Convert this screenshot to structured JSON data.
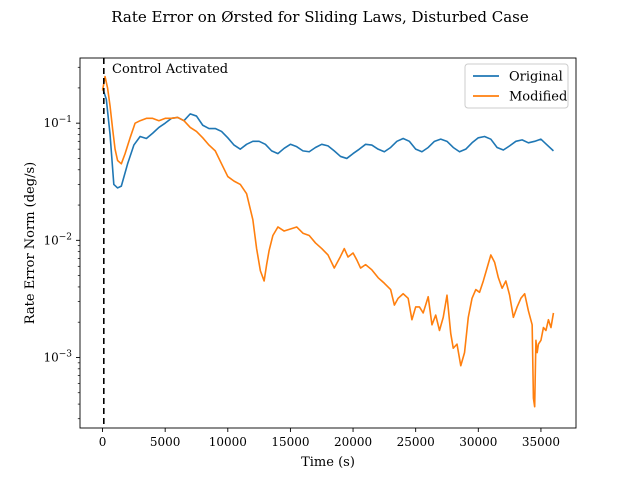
{
  "chart_data": {
    "type": "line",
    "title": "Rate Error on Ørsted for Sliding Laws, Disturbed Case",
    "xlabel": "Time (s)",
    "ylabel": "Rate Error Norm (deg/s)",
    "xlim": [
      -1800,
      37800
    ],
    "ylim": [
      0.00025,
      0.36
    ],
    "yscale": "log",
    "xticks": [
      0,
      5000,
      10000,
      15000,
      20000,
      25000,
      30000,
      35000
    ],
    "xtick_labels": [
      "0",
      "5000",
      "10000",
      "15000",
      "20000",
      "25000",
      "30000",
      "35000"
    ],
    "yticks": [
      0.001,
      0.01,
      0.1
    ],
    "ytick_labels": [
      "10−3",
      "10−2",
      "10−1"
    ],
    "grid": false,
    "legend_position": "top-right",
    "vline": {
      "x": 100,
      "style": "dashed",
      "color": "#000000",
      "label": "Control Activated"
    },
    "series": [
      {
        "name": "Original",
        "color": "#1f77b4",
        "x": [
          0,
          300,
          600,
          900,
          1200,
          1500,
          2000,
          2500,
          3000,
          3500,
          4000,
          4500,
          5000,
          5500,
          6000,
          6500,
          7000,
          7500,
          8000,
          8500,
          9000,
          9500,
          10000,
          10500,
          11000,
          11500,
          12000,
          12500,
          13000,
          13500,
          14000,
          14500,
          15000,
          15500,
          16000,
          16500,
          17000,
          17500,
          18000,
          18500,
          19000,
          19500,
          20000,
          20500,
          21000,
          21500,
          22000,
          22500,
          23000,
          23500,
          24000,
          24500,
          25000,
          25500,
          26000,
          26500,
          27000,
          27500,
          28000,
          28500,
          29000,
          29500,
          30000,
          30500,
          31000,
          31500,
          32000,
          32500,
          33000,
          33500,
          34000,
          34500,
          35000,
          35500,
          36000
        ],
        "y": [
          0.2,
          0.16,
          0.08,
          0.03,
          0.028,
          0.029,
          0.045,
          0.065,
          0.077,
          0.074,
          0.082,
          0.092,
          0.1,
          0.11,
          0.112,
          0.105,
          0.12,
          0.115,
          0.096,
          0.09,
          0.09,
          0.085,
          0.075,
          0.065,
          0.06,
          0.066,
          0.07,
          0.07,
          0.066,
          0.058,
          0.055,
          0.061,
          0.066,
          0.063,
          0.058,
          0.057,
          0.062,
          0.066,
          0.064,
          0.058,
          0.052,
          0.05,
          0.055,
          0.06,
          0.066,
          0.065,
          0.06,
          0.057,
          0.062,
          0.07,
          0.074,
          0.07,
          0.06,
          0.057,
          0.062,
          0.07,
          0.073,
          0.07,
          0.062,
          0.057,
          0.06,
          0.068,
          0.075,
          0.077,
          0.073,
          0.062,
          0.059,
          0.064,
          0.07,
          0.072,
          0.068,
          0.07,
          0.073,
          0.065,
          0.058
        ]
      },
      {
        "name": "Modified",
        "color": "#ff7f0e",
        "x": [
          0,
          200,
          400,
          600,
          800,
          1000,
          1200,
          1500,
          1800,
          2200,
          2600,
          3000,
          3500,
          4000,
          4500,
          5000,
          5500,
          6000,
          6500,
          7000,
          7500,
          8000,
          8500,
          9000,
          9500,
          10000,
          10500,
          11000,
          11500,
          12000,
          12300,
          12600,
          12900,
          13100,
          13300,
          13600,
          14000,
          14500,
          15000,
          15500,
          16000,
          16500,
          17000,
          17500,
          18000,
          18500,
          19000,
          19300,
          19600,
          20000,
          20300,
          20600,
          21000,
          21500,
          22000,
          22500,
          23000,
          23300,
          23600,
          24000,
          24400,
          24700,
          25000,
          25300,
          25600,
          26000,
          26300,
          26600,
          26900,
          27200,
          27500,
          27800,
          28000,
          28300,
          28600,
          28900,
          29200,
          29500,
          29800,
          30100,
          30400,
          30700,
          31000,
          31300,
          31600,
          31900,
          32200,
          32500,
          32800,
          33100,
          33400,
          33700,
          34000,
          34300,
          34400,
          34500,
          34600,
          34700,
          34800,
          35000,
          35200,
          35400,
          35600,
          35800,
          36000
        ],
        "y": [
          0.19,
          0.25,
          0.2,
          0.14,
          0.09,
          0.06,
          0.048,
          0.045,
          0.055,
          0.075,
          0.1,
          0.105,
          0.11,
          0.11,
          0.105,
          0.11,
          0.11,
          0.112,
          0.105,
          0.092,
          0.085,
          0.075,
          0.065,
          0.058,
          0.045,
          0.035,
          0.032,
          0.03,
          0.025,
          0.015,
          0.0085,
          0.0055,
          0.0045,
          0.0062,
          0.0082,
          0.011,
          0.013,
          0.012,
          0.0125,
          0.013,
          0.0115,
          0.011,
          0.0095,
          0.0085,
          0.0075,
          0.0058,
          0.0073,
          0.0085,
          0.0072,
          0.0078,
          0.0068,
          0.0058,
          0.0062,
          0.0056,
          0.0048,
          0.0043,
          0.0038,
          0.0028,
          0.0032,
          0.0035,
          0.0032,
          0.0021,
          0.0027,
          0.0027,
          0.0024,
          0.0033,
          0.0019,
          0.0023,
          0.0017,
          0.0022,
          0.0034,
          0.0016,
          0.0012,
          0.0013,
          0.00085,
          0.0011,
          0.0022,
          0.0032,
          0.0038,
          0.0036,
          0.0045,
          0.0058,
          0.0075,
          0.0065,
          0.0048,
          0.0039,
          0.0045,
          0.0034,
          0.0022,
          0.0027,
          0.0032,
          0.0035,
          0.0025,
          0.0019,
          0.00045,
          0.00038,
          0.0014,
          0.0011,
          0.0013,
          0.0014,
          0.0018,
          0.0017,
          0.0021,
          0.0018,
          0.0024
        ]
      }
    ]
  }
}
